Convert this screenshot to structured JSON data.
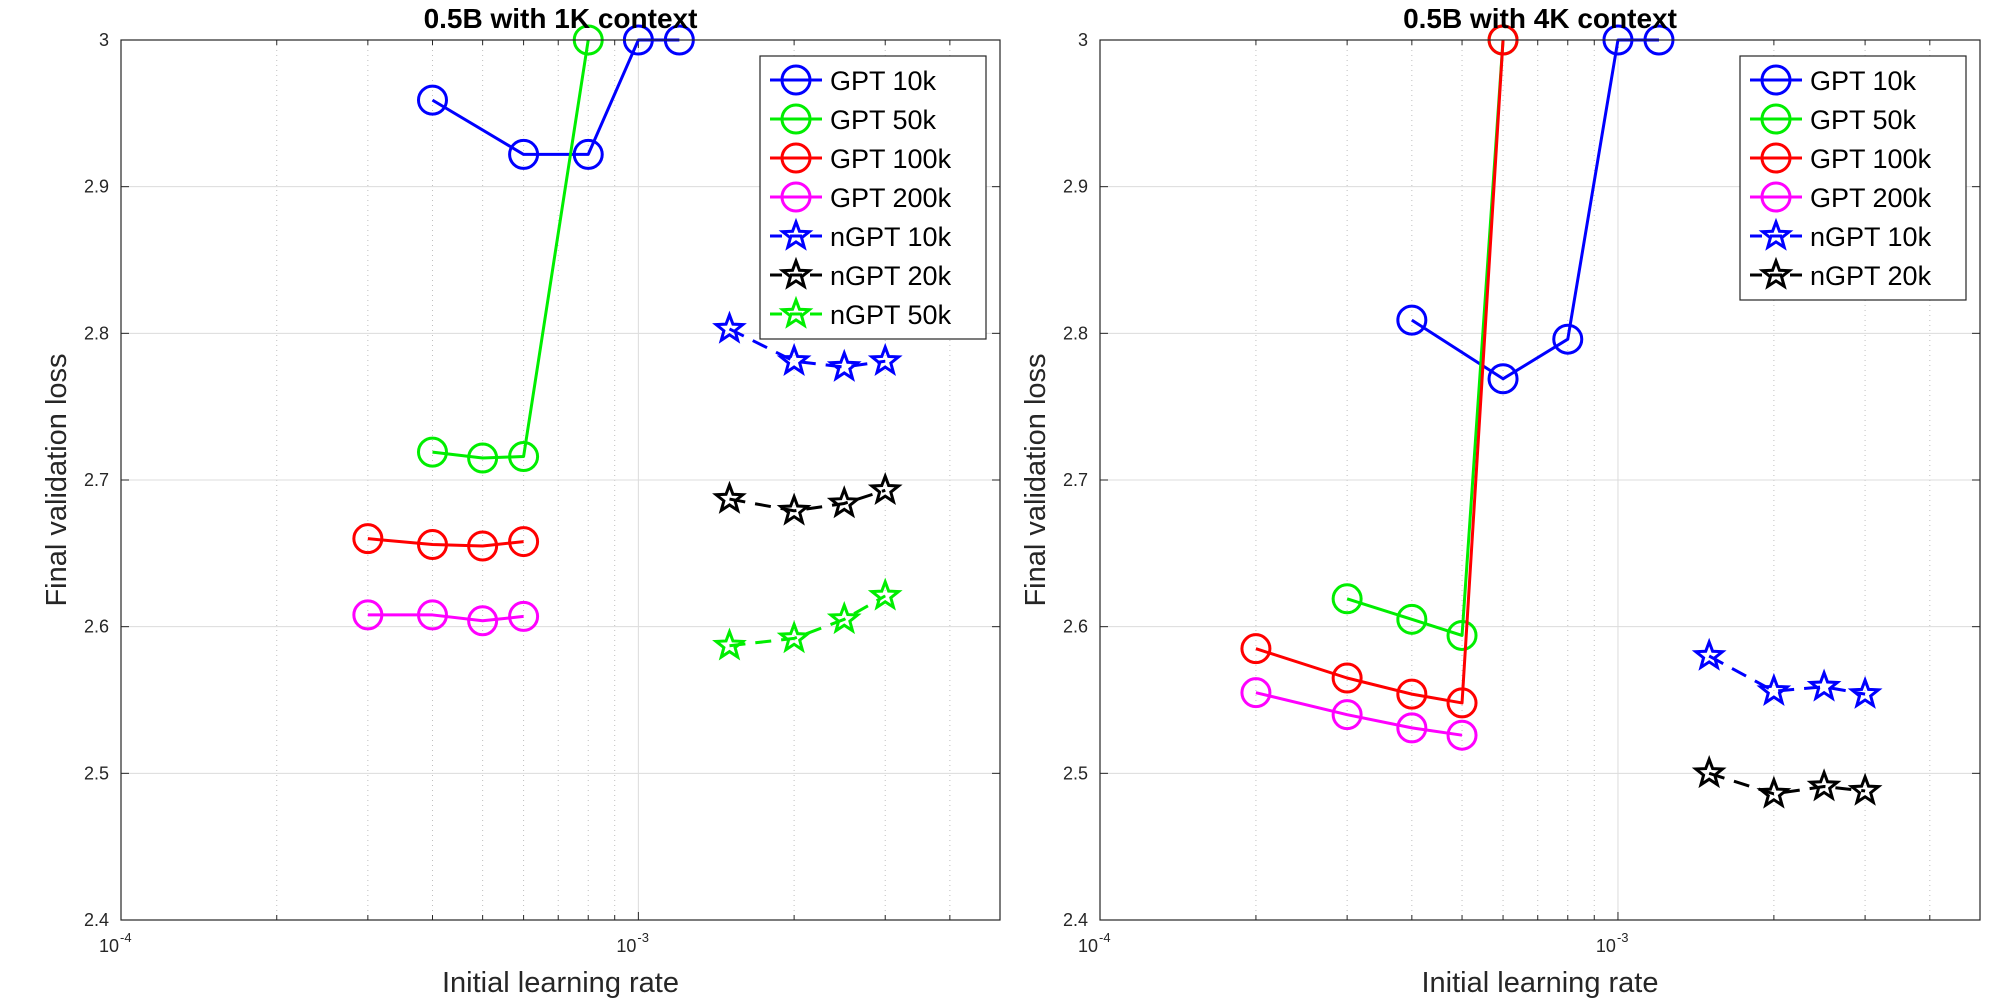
{
  "chart_data": [
    {
      "type": "line",
      "title": "0.5B with 1K context",
      "xlabel": "Initial learning rate",
      "ylabel": "Final validation loss",
      "xscale": "log",
      "xlim": [
        0.0001,
        0.005
      ],
      "ylim": [
        2.4,
        3.0
      ],
      "yticks": [
        2.4,
        2.5,
        2.6,
        2.7,
        2.8,
        2.9,
        3.0
      ],
      "ytick_labels": [
        "2.4",
        "2.5",
        "2.6",
        "2.7",
        "2.8",
        "2.9",
        "3"
      ],
      "xticks": [
        {
          "value": 0.0001,
          "base": "10",
          "exp": "-4"
        },
        {
          "value": 0.001,
          "base": "10",
          "exp": "-3"
        }
      ],
      "grid": true,
      "legend_position": "top-right",
      "series": [
        {
          "name": "GPT 10k",
          "color": "#0000ff",
          "marker": "circle",
          "dash": "solid",
          "x": [
            0.0004,
            0.0006,
            0.0008,
            0.001,
            0.0012
          ],
          "y": [
            2.959,
            2.922,
            2.922,
            3.0,
            3.0
          ]
        },
        {
          "name": "GPT 50k",
          "color": "#00ee00",
          "marker": "circle",
          "dash": "solid",
          "x": [
            0.0004,
            0.0005,
            0.0006,
            0.0008
          ],
          "y": [
            2.719,
            2.715,
            2.716,
            3.0
          ]
        },
        {
          "name": "GPT 100k",
          "color": "#ff0000",
          "marker": "circle",
          "dash": "solid",
          "x": [
            0.0003,
            0.0004,
            0.0005,
            0.0006
          ],
          "y": [
            2.66,
            2.656,
            2.655,
            2.658
          ]
        },
        {
          "name": "GPT 200k",
          "color": "#ff00ff",
          "marker": "circle",
          "dash": "solid",
          "x": [
            0.0003,
            0.0004,
            0.0005,
            0.0006
          ],
          "y": [
            2.608,
            2.608,
            2.604,
            2.607
          ]
        },
        {
          "name": "nGPT 10k",
          "color": "#0000ff",
          "marker": "star",
          "dash": "dashed",
          "x": [
            0.0015,
            0.002,
            0.0025,
            0.003
          ],
          "y": [
            2.803,
            2.781,
            2.777,
            2.781
          ]
        },
        {
          "name": "nGPT 20k",
          "color": "#000000",
          "marker": "star",
          "dash": "dashed",
          "x": [
            0.0015,
            0.002,
            0.0025,
            0.003
          ],
          "y": [
            2.687,
            2.679,
            2.684,
            2.693
          ]
        },
        {
          "name": "nGPT 50k",
          "color": "#00ee00",
          "marker": "star",
          "dash": "dashed",
          "x": [
            0.0015,
            0.002,
            0.0025,
            0.003
          ],
          "y": [
            2.587,
            2.592,
            2.605,
            2.621
          ]
        }
      ]
    },
    {
      "type": "line",
      "title": "0.5B with 4K context",
      "xlabel": "Initial learning rate",
      "ylabel": "Final validation loss",
      "xscale": "log",
      "xlim": [
        0.0001,
        0.005
      ],
      "ylim": [
        2.4,
        3.0
      ],
      "yticks": [
        2.4,
        2.5,
        2.6,
        2.7,
        2.8,
        2.9,
        3.0
      ],
      "ytick_labels": [
        "2.4",
        "2.5",
        "2.6",
        "2.7",
        "2.8",
        "2.9",
        "3"
      ],
      "xticks": [
        {
          "value": 0.0001,
          "base": "10",
          "exp": "-4"
        },
        {
          "value": 0.001,
          "base": "10",
          "exp": "-3"
        }
      ],
      "grid": true,
      "legend_position": "top-right",
      "series": [
        {
          "name": "GPT 10k",
          "color": "#0000ff",
          "marker": "circle",
          "dash": "solid",
          "x": [
            0.0004,
            0.0006,
            0.0008,
            0.001,
            0.0012
          ],
          "y": [
            2.809,
            2.769,
            2.796,
            3.0,
            3.0
          ]
        },
        {
          "name": "GPT 50k",
          "color": "#00ee00",
          "marker": "circle",
          "dash": "solid",
          "x": [
            0.0003,
            0.0004,
            0.0005,
            0.0006
          ],
          "y": [
            2.619,
            2.605,
            2.594,
            3.0
          ]
        },
        {
          "name": "GPT 100k",
          "color": "#ff0000",
          "marker": "circle",
          "dash": "solid",
          "x": [
            0.0002,
            0.0003,
            0.0004,
            0.0005,
            0.0006
          ],
          "y": [
            2.585,
            2.565,
            2.554,
            2.548,
            3.0
          ]
        },
        {
          "name": "GPT 200k",
          "color": "#ff00ff",
          "marker": "circle",
          "dash": "solid",
          "x": [
            0.0002,
            0.0003,
            0.0004,
            0.0005
          ],
          "y": [
            2.555,
            2.54,
            2.531,
            2.526
          ]
        },
        {
          "name": "nGPT 10k",
          "color": "#0000ff",
          "marker": "star",
          "dash": "dashed",
          "x": [
            0.0015,
            0.002,
            0.0025,
            0.003
          ],
          "y": [
            2.58,
            2.556,
            2.559,
            2.554
          ]
        },
        {
          "name": "nGPT 20k",
          "color": "#000000",
          "marker": "star",
          "dash": "dashed",
          "x": [
            0.0015,
            0.002,
            0.0025,
            0.003
          ],
          "y": [
            2.5,
            2.486,
            2.491,
            2.488
          ]
        }
      ]
    }
  ]
}
